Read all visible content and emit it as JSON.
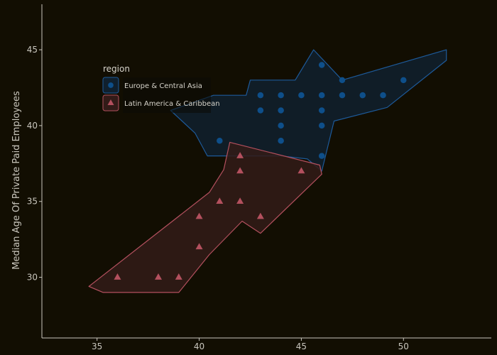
{
  "chart_data": {
    "type": "scatter",
    "title": "",
    "xlabel": "",
    "ylabel": "Median Age Of Private Paid Employees",
    "xlim": [
      32.3,
      54.3
    ],
    "ylim": [
      26,
      48
    ],
    "xticks": [
      35,
      40,
      45,
      50
    ],
    "yticks": [
      30,
      35,
      40,
      45
    ],
    "grid": false,
    "legend": {
      "title": "region",
      "placement": "top-left"
    },
    "series": [
      {
        "name": "Europe & Central Asia",
        "marker": "circle",
        "color": "#0e4f8a",
        "hull_fill": "#10202e",
        "hull_stroke": "#1d5a9a",
        "points": [
          [
            41,
            39
          ],
          [
            43,
            41
          ],
          [
            43,
            42
          ],
          [
            44,
            42
          ],
          [
            44,
            41
          ],
          [
            44,
            40
          ],
          [
            44,
            39
          ],
          [
            45,
            42
          ],
          [
            46,
            44
          ],
          [
            46,
            42
          ],
          [
            46,
            41
          ],
          [
            46,
            40
          ],
          [
            46,
            38
          ],
          [
            47,
            43
          ],
          [
            47,
            42
          ],
          [
            48,
            42
          ],
          [
            49,
            42
          ],
          [
            50,
            43
          ]
        ],
        "hull": [
          [
            38.6,
            41
          ],
          [
            40.7,
            42
          ],
          [
            42.3,
            42
          ],
          [
            42.5,
            43
          ],
          [
            44.7,
            43
          ],
          [
            45.6,
            45
          ],
          [
            47.0,
            43
          ],
          [
            52.1,
            45
          ],
          [
            52.1,
            44.3
          ],
          [
            49.2,
            41.2
          ],
          [
            46.6,
            40.3
          ],
          [
            46.0,
            37
          ],
          [
            45.3,
            37.8
          ],
          [
            44.0,
            38
          ],
          [
            40.4,
            38
          ],
          [
            39.8,
            39.5
          ]
        ]
      },
      {
        "name": "Latin America & Caribbean",
        "marker": "triangle",
        "color": "#b3505e",
        "hull_fill": "#321b18",
        "hull_stroke": "#b3505e",
        "points": [
          [
            36,
            30
          ],
          [
            38,
            30
          ],
          [
            39,
            30
          ],
          [
            40,
            32
          ],
          [
            40,
            34
          ],
          [
            41,
            35
          ],
          [
            42,
            35
          ],
          [
            42,
            37
          ],
          [
            42,
            38
          ],
          [
            43,
            34
          ],
          [
            45,
            37
          ]
        ],
        "hull": [
          [
            34.6,
            29.4
          ],
          [
            35.3,
            29
          ],
          [
            39.0,
            29
          ],
          [
            40.5,
            31.5
          ],
          [
            42.1,
            33.7
          ],
          [
            43.0,
            32.9
          ],
          [
            46.0,
            36.8
          ],
          [
            45.9,
            37.4
          ],
          [
            41.5,
            38.9
          ],
          [
            41.2,
            37.1
          ],
          [
            40.5,
            35.6
          ]
        ]
      }
    ]
  }
}
